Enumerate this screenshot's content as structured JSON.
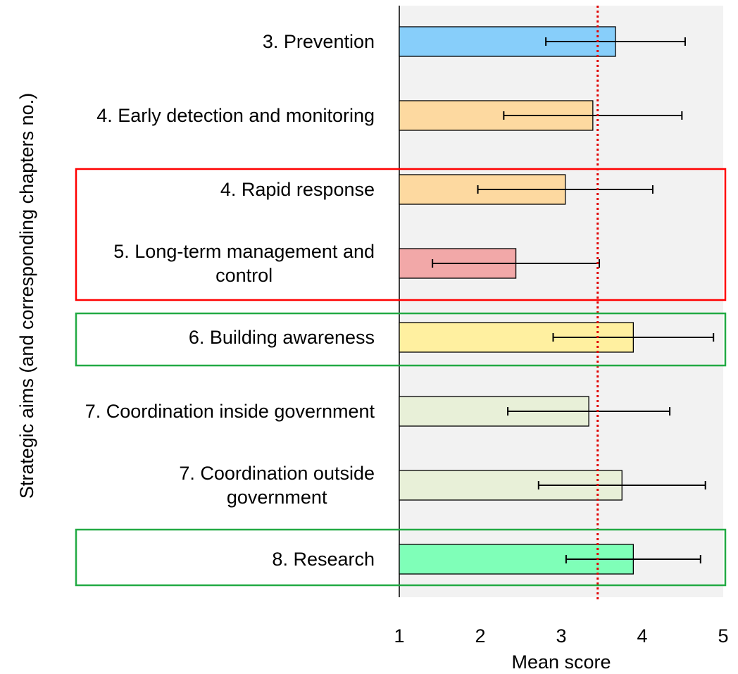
{
  "chart_data": {
    "type": "hbar_error",
    "categories": [
      "3. Prevention",
      "4. Early detection and monitoring",
      "4. Rapid response",
      "5. Long-term management and\ncontrol",
      "6. Building awareness",
      "7. Coordination inside government",
      "7. Coordination outside\ngovernment",
      "8. Research"
    ],
    "values": [
      3.67,
      3.39,
      3.05,
      2.44,
      3.89,
      3.34,
      3.75,
      3.89
    ],
    "errors": [
      0.86,
      1.1,
      1.08,
      1.03,
      0.99,
      1.0,
      1.03,
      0.83
    ],
    "colors": [
      "#87cefa",
      "#fdd9a0",
      "#fdd9a0",
      "#f2a8a8",
      "#fff0a0",
      "#e8f0d8",
      "#e8f0d8",
      "#7fffb8"
    ],
    "reference_line": 3.45,
    "xlim": [
      1,
      5
    ],
    "xticks": [
      1,
      2,
      3,
      4,
      5
    ],
    "xlabel": "Mean score",
    "ylabel": "Strategic aims (and corresponding chapters no.)"
  }
}
